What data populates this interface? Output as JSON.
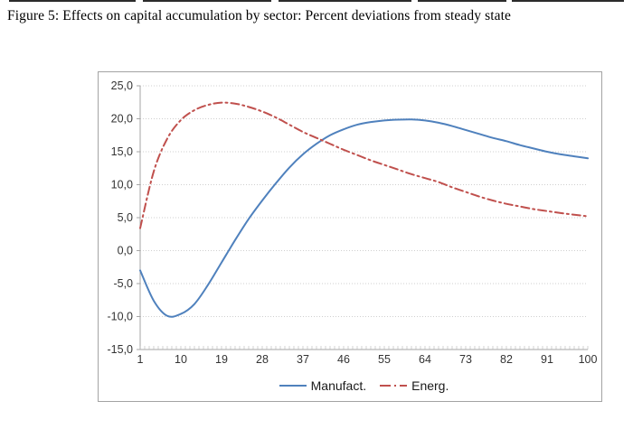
{
  "page": {
    "caption": "Figure 5: Effects on capital accumulation by sector: Percent deviations from steady state"
  },
  "chart_data": {
    "type": "line",
    "title": "Effects on capital accumulation by sector: Percent deviations from steady state",
    "xlabel": "",
    "ylabel": "",
    "xlim": [
      1,
      100
    ],
    "ylim": [
      -15,
      25
    ],
    "grid": "horizontal dotted",
    "legend_position": "bottom",
    "x_tick_labels": [
      "1",
      "10",
      "19",
      "28",
      "37",
      "46",
      "55",
      "64",
      "73",
      "82",
      "91",
      "100"
    ],
    "x_tick_values": [
      1,
      10,
      19,
      28,
      37,
      46,
      55,
      64,
      73,
      82,
      91,
      100
    ],
    "y_tick_labels": [
      "25,0",
      "20,0",
      "15,0",
      "10,0",
      "5,0",
      "0,0",
      "-5,0",
      "-10,0",
      "-15,0"
    ],
    "y_tick_values": [
      25,
      20,
      15,
      10,
      5,
      0,
      -5,
      -10,
      -15
    ],
    "x": [
      1,
      4,
      7,
      10,
      13,
      16,
      19,
      22,
      25,
      28,
      31,
      34,
      37,
      40,
      43,
      46,
      49,
      52,
      55,
      58,
      61,
      64,
      67,
      70,
      73,
      76,
      79,
      82,
      85,
      88,
      91,
      94,
      97,
      100
    ],
    "series": [
      {
        "name": "Manufact.",
        "color": "#4F81BD",
        "style": "solid",
        "values": [
          -3.0,
          -7.6,
          -9.9,
          -9.6,
          -8.1,
          -5.2,
          -1.8,
          1.6,
          4.8,
          7.6,
          10.2,
          12.6,
          14.6,
          16.2,
          17.5,
          18.4,
          19.1,
          19.5,
          19.75,
          19.87,
          19.9,
          19.75,
          19.4,
          18.9,
          18.3,
          17.7,
          17.1,
          16.6,
          16.0,
          15.5,
          15.0,
          14.6,
          14.3,
          14.0
        ]
      },
      {
        "name": "Energ.",
        "color": "#C0504D",
        "style": "dashdot",
        "values": [
          3.4,
          12.0,
          17.0,
          19.8,
          21.3,
          22.1,
          22.45,
          22.3,
          21.8,
          21.1,
          20.2,
          19.1,
          18.0,
          17.1,
          16.2,
          15.3,
          14.5,
          13.7,
          13.0,
          12.3,
          11.6,
          11.0,
          10.4,
          9.6,
          8.9,
          8.2,
          7.6,
          7.1,
          6.7,
          6.3,
          6.0,
          5.7,
          5.45,
          5.2
        ]
      }
    ],
    "colors": {
      "gridline": "#cfcfcf",
      "axis": "#a6a6a6",
      "tick_text": "#333333",
      "border": "#a3a3a3"
    }
  }
}
